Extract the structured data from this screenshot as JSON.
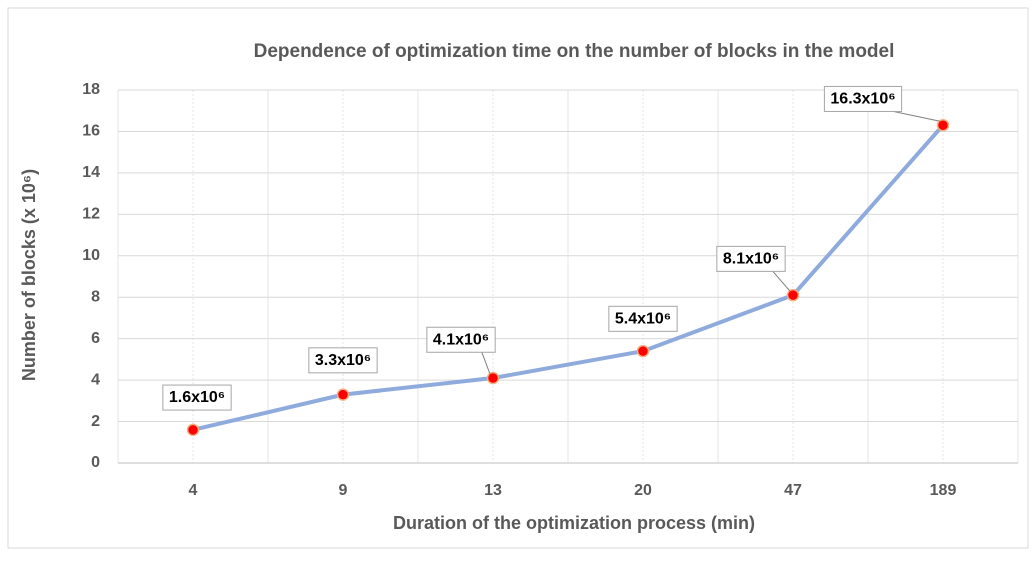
{
  "chart_data": {
    "type": "line",
    "title": "Dependence of optimization time on the number of blocks in the model",
    "x_label": "Duration of the optimization process (min)",
    "y_label": "Number of blocks (x 10⁶)",
    "categories": [
      "4",
      "9",
      "13",
      "20",
      "47",
      "189"
    ],
    "values": [
      1.6,
      3.3,
      4.1,
      5.4,
      8.1,
      16.3
    ],
    "value_labels": [
      "1.6x10⁶",
      "3.3x10⁶",
      "4.1x10⁶",
      "5.4x10⁶",
      "8.1x10⁶",
      "16.3x10⁶"
    ],
    "color": "#8faadc",
    "marker_color": "#ff0000",
    "ylim": [
      0,
      18
    ],
    "yticks": [
      0,
      2,
      4,
      6,
      8,
      10,
      12,
      14,
      16,
      18
    ],
    "grid": true
  }
}
